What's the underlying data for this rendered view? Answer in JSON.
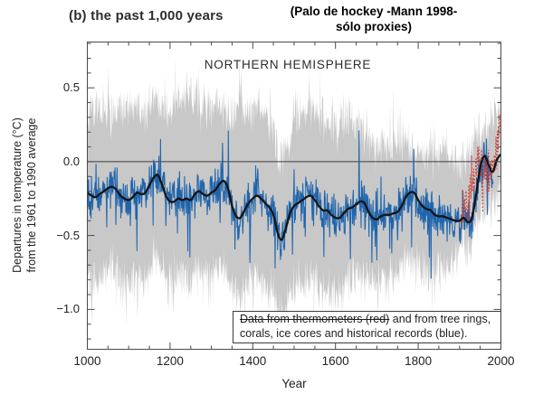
{
  "page": {
    "title": "(b) the past 1,000 years",
    "annotation": "(Palo de hockey -Mann 1998-\nsólo proxies)"
  },
  "chart_data": {
    "type": "line",
    "title": "NORTHERN HEMISPHERE",
    "xlabel": "Year",
    "ylabel": "Departures in temperature (°C)\nfrom the 1961 to 1990 average",
    "xlim": [
      1000,
      2000
    ],
    "ylim": [
      -1.27,
      0.81
    ],
    "x_ticks": [
      1000,
      1200,
      1400,
      1600,
      1800,
      2000
    ],
    "x_minor_step": 50,
    "y_ticks": [
      0.5,
      0.0,
      -0.5,
      -1.0
    ],
    "y_tick_labels": [
      "0.5",
      "0.0",
      "−0.5",
      "−1.0"
    ],
    "y_minor_step": 0.1,
    "zero_line": 0.0,
    "grid": false,
    "legend_position": "bottom-right-inside",
    "legend_note": {
      "struck": "Data from thermometers (red)",
      "rest": " and from tree rings,\ncorals, ice cores and historical records (blue)."
    },
    "colors": {
      "band": "#c8c8c8",
      "annual_blue": "#1f65ad",
      "instrumental_red": "#cf3830",
      "smoothed_black": "#141414",
      "zero_line": "#3c3c3c",
      "frame": "#4a4a4a",
      "text": "#222222"
    },
    "seed": 7,
    "series": [
      {
        "name": "uncertainty-band-2sigma",
        "type": "band",
        "color": "#c8c8c8",
        "x_start": 1000,
        "x_step": 10,
        "x_end": 1998,
        "jitter": 0.16,
        "upper": [
          0.32,
          0.3,
          0.34,
          0.31,
          0.36,
          0.33,
          0.3,
          0.32,
          0.35,
          0.33,
          0.34,
          0.36,
          0.38,
          0.35,
          0.37,
          0.4,
          0.42,
          0.44,
          0.38,
          0.35,
          0.36,
          0.4,
          0.42,
          0.4,
          0.44,
          0.46,
          0.42,
          0.4,
          0.42,
          0.4,
          0.38,
          0.42,
          0.4,
          0.38,
          0.34,
          0.28,
          0.34,
          0.42,
          0.36,
          0.33,
          0.36,
          0.38,
          0.35,
          0.32,
          0.28,
          0.2,
          0.1,
          0.06,
          0.1,
          0.18,
          0.28,
          0.34,
          0.38,
          0.36,
          0.38,
          0.36,
          0.34,
          0.3,
          0.28,
          0.26,
          0.24,
          0.26,
          0.28,
          0.26,
          0.24,
          0.26,
          0.24,
          0.2,
          0.16,
          0.12,
          0.1,
          0.1,
          0.12,
          0.1,
          0.12,
          0.12,
          0.14,
          0.16,
          0.14,
          0.12,
          0.08,
          0.05,
          0.06,
          0.08,
          0.05,
          0.04,
          0.08,
          0.05,
          0.03,
          0.02,
          0.0,
          0.02,
          0.04,
          0.1,
          0.18,
          0.22,
          0.24,
          0.2,
          0.26,
          0.32,
          0.4
        ],
        "lower": [
          -0.78,
          -0.8,
          -0.82,
          -0.78,
          -0.75,
          -0.72,
          -0.7,
          -0.74,
          -0.8,
          -0.82,
          -0.84,
          -0.8,
          -0.76,
          -0.78,
          -0.76,
          -0.72,
          -0.68,
          -0.66,
          -0.72,
          -0.78,
          -0.82,
          -0.8,
          -0.78,
          -0.8,
          -0.78,
          -0.8,
          -0.76,
          -0.74,
          -0.76,
          -0.78,
          -0.76,
          -0.72,
          -0.68,
          -0.7,
          -0.76,
          -0.84,
          -0.9,
          -0.92,
          -0.86,
          -0.82,
          -0.8,
          -0.78,
          -0.8,
          -0.84,
          -0.88,
          -0.92,
          -1.0,
          -1.04,
          -0.96,
          -0.88,
          -0.84,
          -0.82,
          -0.8,
          -0.78,
          -0.76,
          -0.8,
          -0.84,
          -0.86,
          -0.86,
          -0.88,
          -0.9,
          -0.88,
          -0.84,
          -0.8,
          -0.78,
          -0.76,
          -0.74,
          -0.76,
          -0.8,
          -0.84,
          -0.86,
          -0.82,
          -0.8,
          -0.8,
          -0.78,
          -0.76,
          -0.72,
          -0.66,
          -0.64,
          -0.64,
          -0.68,
          -0.72,
          -0.72,
          -0.7,
          -0.72,
          -0.74,
          -0.72,
          -0.72,
          -0.68,
          -0.64,
          -0.6,
          -0.56,
          -0.56,
          -0.5,
          -0.42,
          -0.36,
          -0.3,
          -0.32,
          -0.28,
          -0.22,
          -0.16
        ]
      },
      {
        "name": "smoothed-50yr-black",
        "type": "smooth-line",
        "color": "#141414",
        "width": 2.3,
        "x_start": 1000,
        "x_step": 10,
        "x_end": 1998,
        "y": [
          -0.21,
          -0.23,
          -0.24,
          -0.22,
          -0.2,
          -0.18,
          -0.17,
          -0.19,
          -0.23,
          -0.25,
          -0.26,
          -0.24,
          -0.21,
          -0.22,
          -0.21,
          -0.16,
          -0.11,
          -0.09,
          -0.15,
          -0.23,
          -0.27,
          -0.27,
          -0.25,
          -0.26,
          -0.25,
          -0.26,
          -0.22,
          -0.2,
          -0.22,
          -0.23,
          -0.21,
          -0.19,
          -0.15,
          -0.13,
          -0.18,
          -0.3,
          -0.37,
          -0.38,
          -0.33,
          -0.28,
          -0.25,
          -0.23,
          -0.25,
          -0.28,
          -0.31,
          -0.36,
          -0.48,
          -0.53,
          -0.45,
          -0.35,
          -0.3,
          -0.28,
          -0.26,
          -0.24,
          -0.23,
          -0.26,
          -0.3,
          -0.33,
          -0.33,
          -0.36,
          -0.38,
          -0.38,
          -0.35,
          -0.32,
          -0.31,
          -0.29,
          -0.27,
          -0.28,
          -0.34,
          -0.38,
          -0.39,
          -0.37,
          -0.36,
          -0.36,
          -0.35,
          -0.34,
          -0.3,
          -0.24,
          -0.21,
          -0.21,
          -0.26,
          -0.3,
          -0.32,
          -0.33,
          -0.36,
          -0.37,
          -0.37,
          -0.38,
          -0.39,
          -0.4,
          -0.4,
          -0.38,
          -0.41,
          -0.38,
          -0.22,
          -0.04,
          0.04,
          -0.02,
          -0.07,
          0.01,
          0.05
        ]
      },
      {
        "name": "annual-proxies-blue",
        "type": "noisy-line",
        "color": "#1f65ad",
        "width": 1.05,
        "base": "smoothed-50yr-black",
        "x_start": 1000,
        "x_end": 1981,
        "noise": 0.15,
        "spike_prob": 0.07,
        "spike_amp": 0.3
      },
      {
        "name": "instrumental-red",
        "type": "noisy-line",
        "color": "#cf3830",
        "width": 1.1,
        "dash": "1.6 2.2",
        "base_x": [
          1902,
          1910,
          1920,
          1930,
          1940,
          1945,
          1950,
          1955,
          1960,
          1965,
          1970,
          1975,
          1980,
          1985,
          1990,
          1995,
          1998
        ],
        "base_y": [
          -0.36,
          -0.34,
          -0.3,
          -0.16,
          -0.02,
          0.04,
          -0.04,
          -0.1,
          -0.02,
          -0.1,
          -0.04,
          -0.08,
          0.0,
          0.06,
          0.12,
          0.22,
          0.32
        ],
        "x_start": 1902,
        "x_end": 1998,
        "noise": 0.13,
        "spike_prob": 0.08,
        "spike_amp": 0.15
      }
    ]
  }
}
